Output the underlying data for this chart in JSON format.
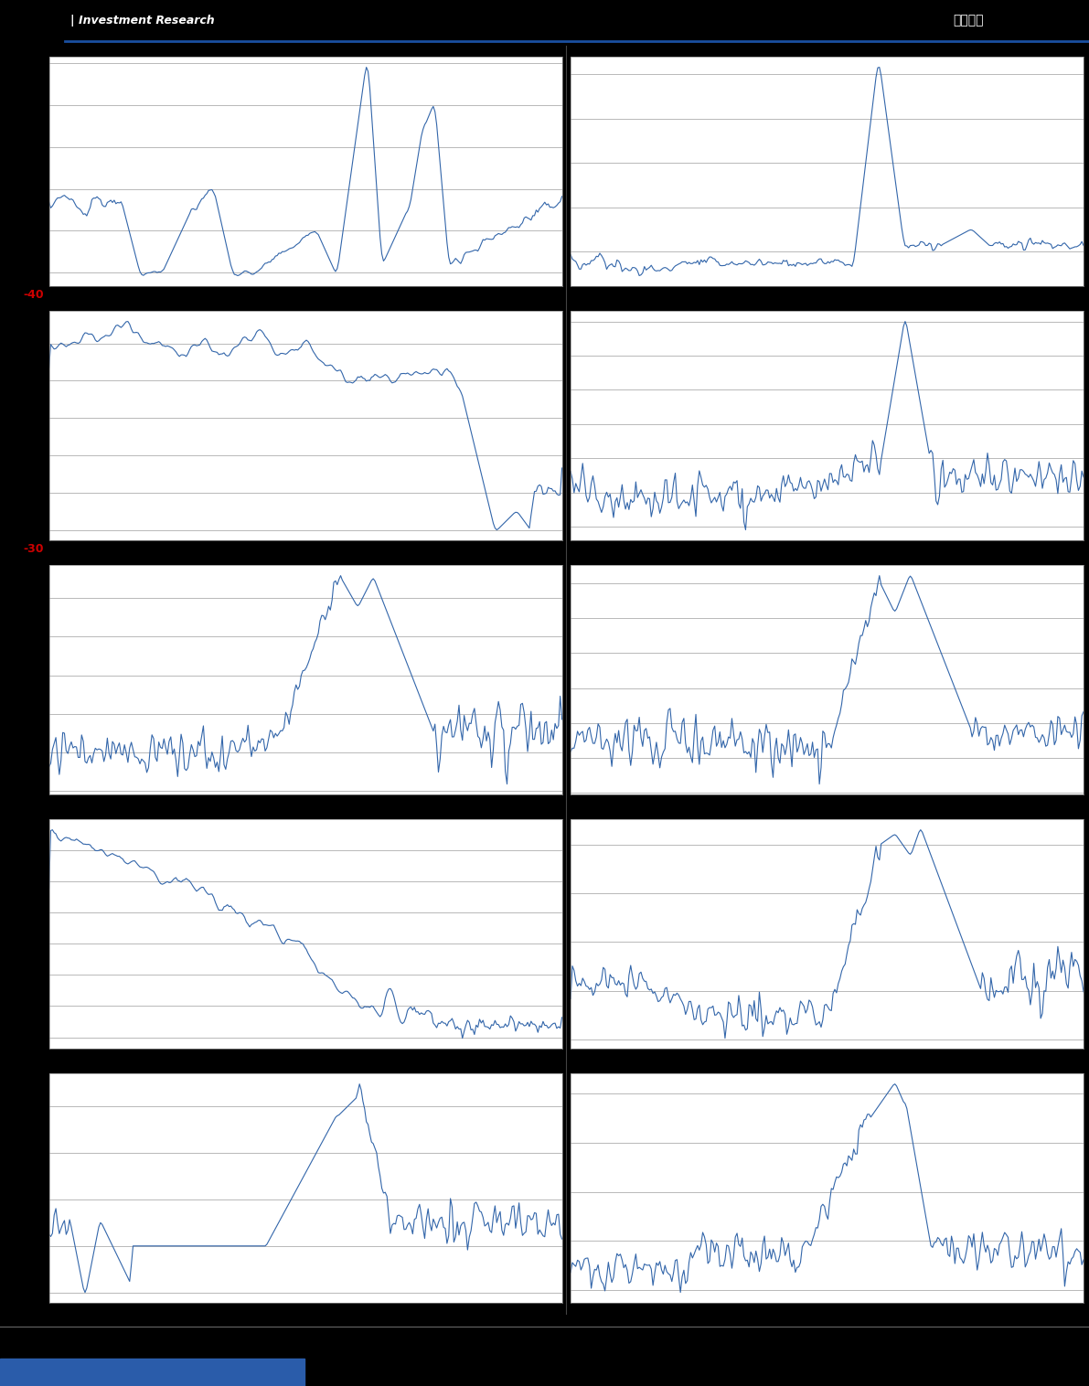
{
  "background_color": "#000000",
  "chart_bg": "#ffffff",
  "line_color": "#3366aa",
  "grid_color": "#999999",
  "header_line_color": "#1a4fa0",
  "footer_line_color": "#666666",
  "label_color_red": "#cc0000",
  "figsize": [
    11.91,
    15.16
  ],
  "dpi": 100,
  "header_text_left": "| Investment Research",
  "header_text_right": "估値周报",
  "label_row0": "-40",
  "label_row1": "-30"
}
